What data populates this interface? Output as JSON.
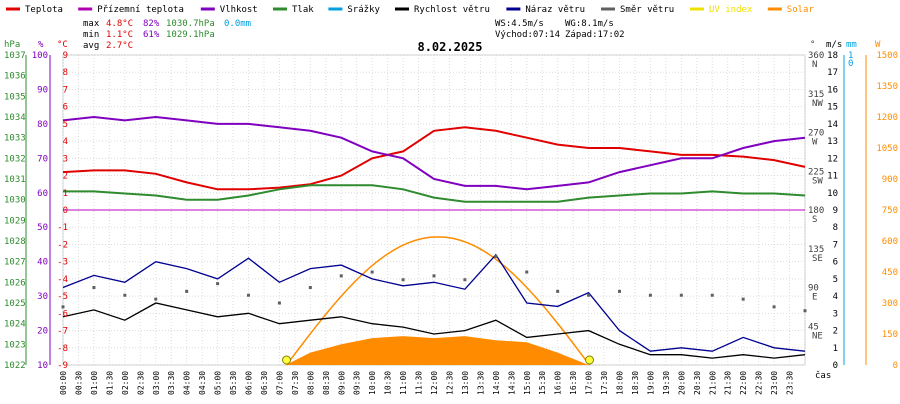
{
  "legend": [
    {
      "label": "Teplota",
      "color": "#e00000"
    },
    {
      "label": "Přízemní teplota",
      "color": "#b000b0"
    },
    {
      "label": "Vlhkost",
      "color": "#8000c0"
    },
    {
      "label": "Tlak",
      "color": "#2e8b2e"
    },
    {
      "label": "Srážky",
      "color": "#00a0e0"
    },
    {
      "label": "Rychlost větru",
      "color": "#000000"
    },
    {
      "label": "Náraz větru",
      "color": "#000090"
    },
    {
      "label": "Směr větru",
      "color": "#606060"
    },
    {
      "label": "UV index",
      "color": "#f0e000"
    },
    {
      "label": "Solar",
      "color": "#ff8c00"
    }
  ],
  "stats": {
    "max_label": "max",
    "max_temp": "4.8°C",
    "max_hum": "82%",
    "max_press": "1030.7hPa",
    "max_rain": "0.0mm",
    "min_label": "min",
    "min_temp": "1.1°C",
    "min_hum": "61%",
    "min_press": "1029.1hPa",
    "avg_label": "avg",
    "avg_temp": "2.7°C"
  },
  "wind_info": {
    "ws": "WS:4.5m/s",
    "wg": "WG:8.1m/s",
    "sunrise": "Východ:07:14",
    "sunset": "Západ:17:02"
  },
  "date": "8.02.2025",
  "units": {
    "hpa": "hPa",
    "pct": "%",
    "degc": "°C",
    "deg": "°",
    "ms": "m/s",
    "mm": "mm",
    "w": "W",
    "cas": "čas"
  },
  "axes": {
    "hpa": [
      "1037",
      "1036",
      "1035",
      "1034",
      "1033",
      "1032",
      "1031",
      "1030",
      "1029",
      "1028",
      "1027",
      "1026",
      "1025",
      "1024",
      "1023",
      "1022"
    ],
    "pct": [
      "100",
      "90",
      "80",
      "70",
      "60",
      "50",
      "40",
      "30",
      "20",
      "10"
    ],
    "degc": [
      "9",
      "8",
      "7",
      "6",
      "5",
      "4",
      "3",
      "2",
      "1",
      "0",
      "-1",
      "-2",
      "-3",
      "-4",
      "-5",
      "-6",
      "-7",
      "-8",
      "-9"
    ],
    "deg": [
      "360",
      "315",
      "270",
      "225",
      "180",
      "135",
      "90",
      "45"
    ],
    "dir": [
      "N",
      "NW",
      "W",
      "SW",
      "S",
      "SE",
      "E",
      "NE"
    ],
    "ms": [
      "18",
      "17",
      "16",
      "15",
      "14",
      "13",
      "12",
      "11",
      "10",
      "9",
      "8",
      "7",
      "6",
      "5",
      "4",
      "3",
      "2",
      "1",
      "0"
    ],
    "mm": [
      "1",
      "0"
    ],
    "w": [
      "1500",
      "1350",
      "1200",
      "1050",
      "900",
      "750",
      "600",
      "450",
      "300",
      "150",
      "0"
    ],
    "time": [
      "00:00",
      "00:30",
      "01:00",
      "01:30",
      "02:00",
      "02:30",
      "03:00",
      "03:30",
      "04:00",
      "04:30",
      "05:00",
      "05:30",
      "06:00",
      "06:30",
      "07:00",
      "07:30",
      "08:00",
      "08:30",
      "09:00",
      "09:30",
      "10:00",
      "10:30",
      "11:00",
      "11:30",
      "12:00",
      "12:30",
      "13:00",
      "13:30",
      "14:00",
      "14:30",
      "15:00",
      "15:30",
      "16:00",
      "16:30",
      "17:00",
      "17:30",
      "18:00",
      "18:30",
      "19:00",
      "19:30",
      "20:00",
      "20:30",
      "21:00",
      "21:30",
      "22:00",
      "22:30",
      "23:00",
      "23:30"
    ]
  },
  "chart_data": {
    "type": "line",
    "x_unit": "hour",
    "title": "8.02.2025",
    "ylim_temp": [
      -9,
      9
    ],
    "ylim_hum": [
      10,
      100
    ],
    "ylim_press": [
      1022,
      1037
    ],
    "ylim_wind": [
      0,
      18
    ],
    "ylim_solar": [
      0,
      1500
    ],
    "series": [
      {
        "name": "Teplota",
        "axis": "temp",
        "color": "#e00000",
        "x": [
          0,
          1,
          2,
          3,
          4,
          5,
          6,
          7,
          8,
          9,
          10,
          11,
          12,
          13,
          14,
          15,
          16,
          17,
          18,
          19,
          20,
          21,
          22,
          23,
          24
        ],
        "y": [
          2.2,
          2.3,
          2.3,
          2.1,
          1.6,
          1.2,
          1.2,
          1.3,
          1.5,
          2.0,
          3.0,
          3.4,
          4.6,
          4.8,
          4.6,
          4.2,
          3.8,
          3.6,
          3.6,
          3.4,
          3.2,
          3.2,
          3.1,
          2.9,
          2.5
        ]
      },
      {
        "name": "Vlhkost",
        "axis": "hum",
        "color": "#8000c0",
        "x": [
          0,
          1,
          2,
          3,
          4,
          5,
          6,
          7,
          8,
          9,
          10,
          11,
          12,
          13,
          14,
          15,
          16,
          17,
          18,
          19,
          20,
          21,
          22,
          23,
          24
        ],
        "y": [
          81,
          82,
          81,
          82,
          81,
          80,
          80,
          79,
          78,
          76,
          72,
          70,
          64,
          62,
          62,
          61,
          62,
          63,
          66,
          68,
          70,
          70,
          73,
          75,
          76
        ]
      },
      {
        "name": "Tlak",
        "axis": "press",
        "color": "#2e8b2e",
        "x": [
          0,
          1,
          2,
          3,
          4,
          5,
          6,
          7,
          8,
          9,
          10,
          11,
          12,
          13,
          14,
          15,
          16,
          17,
          18,
          19,
          20,
          21,
          22,
          23,
          24
        ],
        "y": [
          1030.4,
          1030.4,
          1030.3,
          1030.2,
          1030.0,
          1030.0,
          1030.2,
          1030.5,
          1030.7,
          1030.7,
          1030.7,
          1030.5,
          1030.1,
          1029.9,
          1029.9,
          1029.9,
          1029.9,
          1030.1,
          1030.2,
          1030.3,
          1030.3,
          1030.4,
          1030.3,
          1030.3,
          1030.2
        ]
      },
      {
        "name": "Rychlost větru",
        "axis": "wind",
        "color": "#000000",
        "x": [
          0,
          1,
          2,
          3,
          4,
          5,
          6,
          7,
          8,
          9,
          10,
          11,
          12,
          13,
          14,
          15,
          16,
          17,
          18,
          19,
          20,
          21,
          22,
          23,
          24
        ],
        "y": [
          2.8,
          3.2,
          2.6,
          3.6,
          3.2,
          2.8,
          3.0,
          2.4,
          2.6,
          2.8,
          2.4,
          2.2,
          1.8,
          2.0,
          2.6,
          1.6,
          1.8,
          2.0,
          1.2,
          0.6,
          0.6,
          0.4,
          0.6,
          0.4,
          0.6
        ]
      },
      {
        "name": "Náraz větru",
        "axis": "wind",
        "color": "#000090",
        "x": [
          0,
          1,
          2,
          3,
          4,
          5,
          6,
          7,
          8,
          9,
          10,
          11,
          12,
          13,
          14,
          15,
          16,
          17,
          18,
          19,
          20,
          21,
          22,
          23,
          24
        ],
        "y": [
          4.5,
          5.2,
          4.8,
          6.0,
          5.6,
          5.0,
          6.2,
          4.8,
          5.6,
          5.8,
          5.0,
          4.6,
          4.8,
          4.4,
          6.4,
          3.6,
          3.4,
          4.2,
          2.0,
          0.8,
          1.0,
          0.8,
          1.6,
          1.0,
          0.8
        ]
      },
      {
        "name": "Směr větru",
        "axis": "deg",
        "color": "#606060",
        "x": [
          0,
          1,
          2,
          3,
          4,
          5,
          6,
          7,
          8,
          9,
          10,
          11,
          12,
          13,
          14,
          15,
          16,
          17,
          18,
          19,
          20,
          21,
          22,
          23,
          24
        ],
        "y": [
          75,
          100,
          90,
          85,
          95,
          105,
          90,
          80,
          100,
          115,
          120,
          110,
          115,
          110,
          140,
          120,
          95,
          90,
          95,
          90,
          90,
          90,
          85,
          75,
          70
        ]
      },
      {
        "name": "Solar",
        "axis": "solar",
        "color": "#ff8c00",
        "x": [
          7.2,
          8,
          9,
          10,
          11,
          12,
          13,
          14,
          15,
          16,
          17
        ],
        "y": [
          0,
          60,
          100,
          130,
          140,
          130,
          140,
          120,
          110,
          60,
          0
        ]
      }
    ],
    "solar_theoretical": {
      "sunrise": 7.23,
      "sunset": 17.03,
      "peak": 620
    },
    "grid": true
  }
}
